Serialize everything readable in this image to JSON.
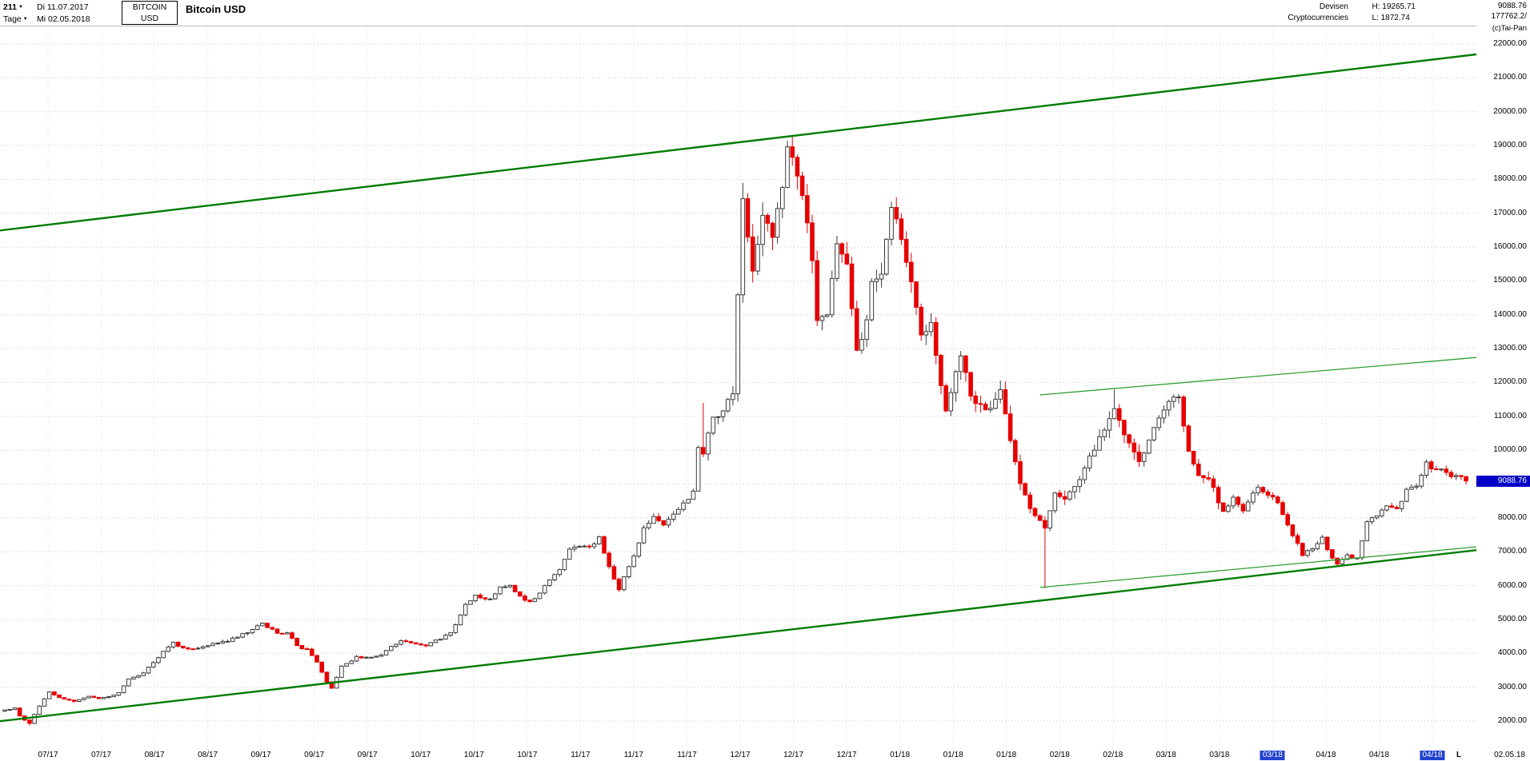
{
  "header": {
    "bars_count": "211",
    "period_label": "Tage",
    "date_from": "Di 11.07.2017",
    "date_to": "Mi 02.05.2018",
    "symbol": "BITCOIN",
    "currency": "USD",
    "title": "Bitcoin USD",
    "category": "Devisen",
    "subcategory": "Cryptocurrencies",
    "high_label": "H: 19265.71",
    "low_label": "L: 1872.74",
    "last_price": "9088.76",
    "volume": "177762.2/",
    "copyright": "(c)Tai-Pan"
  },
  "icons": {
    "chevron_down": "▼"
  },
  "chart_data": {
    "type": "candlestick",
    "title": "Bitcoin USD",
    "instrument": "BITCOIN / USD",
    "timeframe": "Tage",
    "range_start": "11.07.2017",
    "range_end": "02.05.2018",
    "series_high": 19265.71,
    "series_low": 1872.74,
    "last_close": 9088.76,
    "grid": true,
    "price_axis": {
      "ticks": [
        "22000.00",
        "21000.00",
        "20000.00",
        "19000.00",
        "18000.00",
        "17000.00",
        "16000.00",
        "15000.00",
        "14000.00",
        "13000.00",
        "12000.00",
        "11000.00",
        "10000.00",
        "9000.00",
        "8000.00",
        "7000.00",
        "6000.00",
        "5000.00",
        "4000.00",
        "3000.00",
        "2000.00"
      ],
      "max_visible": 22000,
      "min_visible": 2000,
      "step": 1000
    },
    "x_axis": {
      "labels": [
        "07/17",
        "07/17",
        "08/17",
        "08/17",
        "09/17",
        "09/17",
        "09/17",
        "10/17",
        "10/17",
        "10/17",
        "11/17",
        "11/17",
        "11/17",
        "12/17",
        "12/17",
        "12/17",
        "01/18",
        "01/18",
        "01/18",
        "02/18",
        "02/18",
        "03/18",
        "03/18",
        "03/18",
        "04/18",
        "04/18",
        "04/18"
      ],
      "highlighted_indices": [
        23,
        26
      ],
      "end_label": "L",
      "end_date": "02.05.18"
    },
    "anchors": [
      [
        0,
        2325
      ],
      [
        2,
        2385
      ],
      [
        3,
        2150
      ],
      [
        5,
        1929
      ],
      [
        7,
        2440
      ],
      [
        9,
        2857
      ],
      [
        11,
        2690
      ],
      [
        14,
        2578
      ],
      [
        17,
        2730
      ],
      [
        19,
        2660
      ],
      [
        21,
        2718
      ],
      [
        23,
        2840
      ],
      [
        25,
        3240
      ],
      [
        28,
        3420
      ],
      [
        31,
        3870
      ],
      [
        34,
        4327
      ],
      [
        36,
        4160
      ],
      [
        39,
        4150
      ],
      [
        42,
        4290
      ],
      [
        45,
        4352
      ],
      [
        48,
        4580
      ],
      [
        50,
        4703
      ],
      [
        52,
        4892
      ],
      [
        55,
        4590
      ],
      [
        57,
        4605
      ],
      [
        59,
        4228
      ],
      [
        61,
        4122
      ],
      [
        63,
        3740
      ],
      [
        65,
        3154
      ],
      [
        66,
        2970
      ],
      [
        68,
        3620
      ],
      [
        71,
        3905
      ],
      [
        73,
        3880
      ],
      [
        76,
        3950
      ],
      [
        78,
        4201
      ],
      [
        80,
        4370
      ],
      [
        82,
        4310
      ],
      [
        85,
        4219
      ],
      [
        88,
        4420
      ],
      [
        90,
        4610
      ],
      [
        93,
        5443
      ],
      [
        95,
        5720
      ],
      [
        98,
        5605
      ],
      [
        100,
        5960
      ],
      [
        102,
        6008
      ],
      [
        104,
        5690
      ],
      [
        106,
        5527
      ],
      [
        108,
        5780
      ],
      [
        110,
        6170
      ],
      [
        112,
        6470
      ],
      [
        114,
        7078
      ],
      [
        116,
        7160
      ],
      [
        118,
        7150
      ],
      [
        120,
        7444
      ],
      [
        122,
        6560
      ],
      [
        124,
        5878
      ],
      [
        126,
        6560
      ],
      [
        128,
        7260
      ],
      [
        129,
        7708
      ],
      [
        131,
        8040
      ],
      [
        133,
        7790
      ],
      [
        136,
        8250
      ],
      [
        138,
        8550
      ],
      [
        139,
        8790
      ],
      [
        140,
        10080
      ],
      [
        141,
        9888
      ],
      [
        143,
        10975
      ],
      [
        145,
        11160
      ],
      [
        147,
        11667
      ],
      [
        149,
        17429
      ],
      [
        151,
        15290
      ],
      [
        153,
        16936
      ],
      [
        155,
        16286
      ],
      [
        157,
        17760
      ],
      [
        158,
        18960
      ],
      [
        159,
        18650
      ],
      [
        160,
        18100
      ],
      [
        161,
        17521
      ],
      [
        163,
        15600
      ],
      [
        164,
        13831
      ],
      [
        166,
        14000
      ],
      [
        168,
        16099
      ],
      [
        170,
        15500
      ],
      [
        172,
        12952
      ],
      [
        174,
        13850
      ],
      [
        175,
        14982
      ],
      [
        177,
        15201
      ],
      [
        179,
        17172
      ],
      [
        181,
        16228
      ],
      [
        183,
        14973
      ],
      [
        185,
        13405
      ],
      [
        187,
        13772
      ],
      [
        188,
        12800
      ],
      [
        190,
        11162
      ],
      [
        193,
        12783
      ],
      [
        195,
        11600
      ],
      [
        197,
        11359
      ],
      [
        199,
        11234
      ],
      [
        201,
        11786
      ],
      [
        203,
        10285
      ],
      [
        205,
        9014
      ],
      [
        207,
        8277
      ],
      [
        210,
        7700
      ],
      [
        212,
        8736
      ],
      [
        214,
        8556
      ],
      [
        216,
        8926
      ],
      [
        218,
        9477
      ],
      [
        221,
        10397
      ],
      [
        224,
        11228
      ],
      [
        226,
        10455
      ],
      [
        229,
        9664
      ],
      [
        231,
        10302
      ],
      [
        233,
        10951
      ],
      [
        235,
        11440
      ],
      [
        237,
        11573
      ],
      [
        239,
        9965
      ],
      [
        241,
        9251
      ],
      [
        243,
        9152
      ],
      [
        246,
        8190
      ],
      [
        248,
        8610
      ],
      [
        250,
        8206
      ],
      [
        253,
        8900
      ],
      [
        255,
        8668
      ],
      [
        257,
        8449
      ],
      [
        259,
        7793
      ],
      [
        262,
        6890
      ],
      [
        264,
        7084
      ],
      [
        266,
        7429
      ],
      [
        268,
        6811
      ],
      [
        269,
        6636
      ],
      [
        271,
        6906
      ],
      [
        273,
        6816
      ],
      [
        275,
        7889
      ],
      [
        277,
        8058
      ],
      [
        279,
        8355
      ],
      [
        281,
        8272
      ],
      [
        283,
        8845
      ],
      [
        285,
        8939
      ],
      [
        287,
        9652
      ],
      [
        289,
        9427
      ],
      [
        291,
        9342
      ],
      [
        293,
        9251
      ],
      [
        295,
        9088.76
      ]
    ],
    "wick_overrides": {
      "5": {
        "low": 1872.74
      },
      "66": {
        "low": 2951
      },
      "141": {
        "high": 11395
      },
      "149": {
        "high": 17899
      },
      "159": {
        "high": 19265.71
      },
      "210": {
        "low": 5920
      },
      "224": {
        "high": 11788
      },
      "237": {
        "high": 11660
      }
    },
    "trend_lines": [
      {
        "name": "channel-upper",
        "d1": -1,
        "p1": 16490,
        "d2": 297.5,
        "p2": 21700,
        "width": 2.4,
        "color": "#007c00"
      },
      {
        "name": "channel-lower",
        "d1": -1,
        "p1": 1995,
        "d2": 297.5,
        "p2": 7055,
        "width": 2.4,
        "color": "#007c00"
      },
      {
        "name": "inner-resistance",
        "d1": 209,
        "p1": 11634,
        "d2": 297.5,
        "p2": 12744,
        "width": 1.3,
        "color": "#2f9e2f"
      },
      {
        "name": "inner-support",
        "d1": 209,
        "p1": 5944,
        "d2": 297.5,
        "p2": 7148,
        "width": 1.3,
        "color": "#2f9e2f"
      }
    ]
  },
  "colors": {
    "up_body": "#ffffff",
    "up_line": "#3a3a3a",
    "down": "#e60000",
    "grid_h": "#c4c4c4",
    "grid_v": "#dcdcdc",
    "marker_bg": "#0101c8",
    "marker_text": "#ffffff",
    "tick_highlight_bg": "#2240d0"
  }
}
